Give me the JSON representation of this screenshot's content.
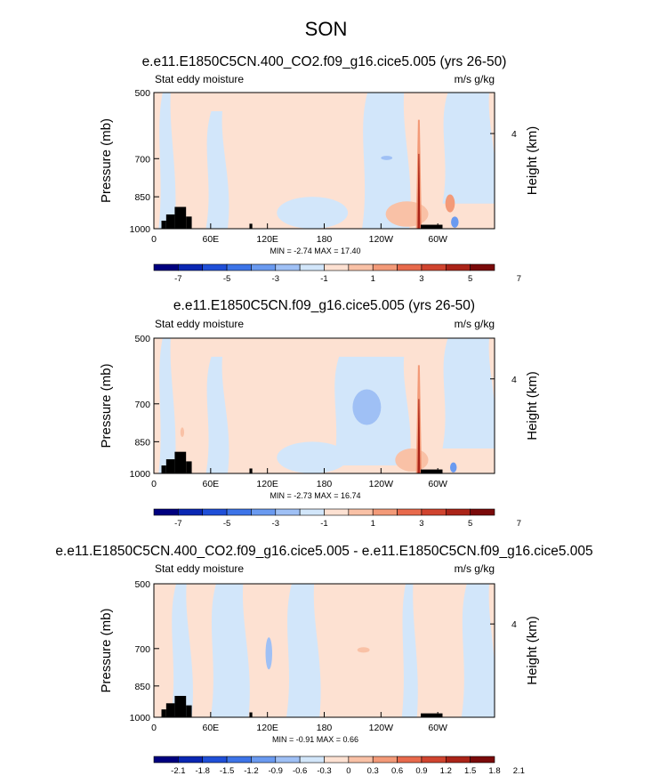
{
  "page_title": "SON",
  "colors": {
    "scale": [
      "#00007f",
      "#0a27b3",
      "#1f4fd8",
      "#3d74e8",
      "#6a9af0",
      "#9fc0f5",
      "#d2e6fa",
      "#fde1d2",
      "#f9c1a6",
      "#f39a78",
      "#e86a4c",
      "#d0442f",
      "#ab2418",
      "#7a0a0a"
    ],
    "land": "#000000",
    "axis": "#000000"
  },
  "chart_data": [
    {
      "type": "heatmap",
      "title": "e.e11.E1850C5CN.400_CO2.f09_g16.cice5.005 (yrs 26-50)",
      "left_label": "Stat eddy moisture",
      "right_label": "m/s g/kg",
      "ylabel": "Pressure (mb)",
      "ylabel_right": "Height (km)",
      "xticks": [
        "0",
        "60E",
        "120E",
        "180",
        "120W",
        "60W"
      ],
      "xtick_lon": [
        0,
        60,
        120,
        180,
        240,
        300
      ],
      "xlim": [
        0,
        360
      ],
      "yticks": [
        "500",
        "700",
        "850",
        "1000"
      ],
      "ytick_p": [
        500,
        700,
        850,
        1000
      ],
      "ylim": [
        500,
        1000
      ],
      "right_ticks": [
        "4"
      ],
      "right_tick_p": [
        616
      ],
      "stats": "MIN = -2.74  MAX = 17.40",
      "min": -2.74,
      "max": 17.4,
      "colorbar_labels": [
        "-7",
        "-5",
        "-3",
        "-1",
        "1",
        "3",
        "5",
        "7"
      ],
      "colorbar_levels": [
        -7,
        -6,
        -5,
        -4,
        -3,
        -2,
        -1,
        0,
        1,
        2,
        3,
        4,
        5,
        6,
        7
      ],
      "features": [
        {
          "kind": "band",
          "lon": [
            5,
            22
          ],
          "p": [
            500,
            1000
          ],
          "level": 6
        },
        {
          "kind": "band",
          "lon": [
            55,
            78
          ],
          "p": [
            550,
            1000
          ],
          "level": 6
        },
        {
          "kind": "blob",
          "lon": [
            130,
            205
          ],
          "p": [
            850,
            1000
          ],
          "level": 6
        },
        {
          "kind": "region",
          "lon": [
            220,
            270
          ],
          "p": [
            500,
            1000
          ],
          "level": 6
        },
        {
          "kind": "region",
          "lon": [
            305,
            360
          ],
          "p": [
            500,
            880
          ],
          "level": 6
        },
        {
          "kind": "blob",
          "lon": [
            240,
            252
          ],
          "p": [
            690,
            705
          ],
          "level": 5
        },
        {
          "kind": "blob",
          "lon": [
            245,
            290
          ],
          "p": [
            870,
            990
          ],
          "level": 8
        },
        {
          "kind": "spike",
          "lon": [
            277,
            283
          ],
          "p": [
            500,
            1000
          ],
          "level": 12
        },
        {
          "kind": "blob",
          "lon": [
            308,
            318
          ],
          "p": [
            840,
            920
          ],
          "level": 9
        },
        {
          "kind": "blob",
          "lon": [
            314,
            322
          ],
          "p": [
            940,
            995
          ],
          "level": 4
        }
      ],
      "land": [
        [
          8,
          13,
          960
        ],
        [
          13,
          22,
          930
        ],
        [
          22,
          34,
          895
        ],
        [
          34,
          40,
          940
        ],
        [
          101,
          104,
          975
        ],
        [
          282,
          305,
          980
        ]
      ]
    },
    {
      "type": "heatmap",
      "title": "e.e11.E1850C5CN.f09_g16.cice5.005 (yrs 26-50)",
      "left_label": "Stat eddy moisture",
      "right_label": "m/s g/kg",
      "ylabel": "Pressure (mb)",
      "ylabel_right": "Height (km)",
      "xticks": [
        "0",
        "60E",
        "120E",
        "180",
        "120W",
        "60W"
      ],
      "xtick_lon": [
        0,
        60,
        120,
        180,
        240,
        300
      ],
      "xlim": [
        0,
        360
      ],
      "yticks": [
        "500",
        "700",
        "850",
        "1000"
      ],
      "ytick_p": [
        500,
        700,
        850,
        1000
      ],
      "ylim": [
        500,
        1000
      ],
      "right_ticks": [
        "4"
      ],
      "right_tick_p": [
        616
      ],
      "stats": "MIN = -2.73  MAX = 16.74",
      "min": -2.73,
      "max": 16.74,
      "colorbar_labels": [
        "-7",
        "-5",
        "-3",
        "-1",
        "1",
        "3",
        "5",
        "7"
      ],
      "colorbar_levels": [
        -7,
        -6,
        -5,
        -4,
        -3,
        -2,
        -1,
        0,
        1,
        2,
        3,
        4,
        5,
        6,
        7
      ],
      "features": [
        {
          "kind": "band",
          "lon": [
            5,
            22
          ],
          "p": [
            500,
            1000
          ],
          "level": 6
        },
        {
          "kind": "band",
          "lon": [
            55,
            78
          ],
          "p": [
            550,
            1000
          ],
          "level": 6
        },
        {
          "kind": "blob",
          "lon": [
            130,
            205
          ],
          "p": [
            850,
            1000
          ],
          "level": 6
        },
        {
          "kind": "region",
          "lon": [
            190,
            270
          ],
          "p": [
            550,
            960
          ],
          "level": 6
        },
        {
          "kind": "blob",
          "lon": [
            210,
            240
          ],
          "p": [
            650,
            780
          ],
          "level": 5
        },
        {
          "kind": "region",
          "lon": [
            305,
            360
          ],
          "p": [
            500,
            880
          ],
          "level": 6
        },
        {
          "kind": "blob",
          "lon": [
            255,
            290
          ],
          "p": [
            880,
            990
          ],
          "level": 8
        },
        {
          "kind": "spike",
          "lon": [
            277,
            283
          ],
          "p": [
            500,
            1000
          ],
          "level": 12
        },
        {
          "kind": "blob",
          "lon": [
            313,
            320
          ],
          "p": [
            945,
            995
          ],
          "level": 4
        },
        {
          "kind": "blob",
          "lon": [
            28,
            32
          ],
          "p": [
            790,
            830
          ],
          "level": 8
        }
      ],
      "land": [
        [
          8,
          13,
          960
        ],
        [
          13,
          22,
          930
        ],
        [
          22,
          34,
          895
        ],
        [
          34,
          40,
          940
        ],
        [
          101,
          104,
          975
        ],
        [
          282,
          305,
          980
        ]
      ]
    },
    {
      "type": "heatmap",
      "title": "e.e11.E1850C5CN.400_CO2.f09_g16.cice5.005 - e.e11.E1850C5CN.f09_g16.cice5.005",
      "left_label": "Stat eddy moisture",
      "right_label": "m/s g/kg",
      "ylabel": "Pressure (mb)",
      "ylabel_right": "Height (km)",
      "xticks": [
        "0",
        "60E",
        "120E",
        "180",
        "120W",
        "60W"
      ],
      "xtick_lon": [
        0,
        60,
        120,
        180,
        240,
        300
      ],
      "xlim": [
        0,
        360
      ],
      "yticks": [
        "500",
        "700",
        "850",
        "1000"
      ],
      "ytick_p": [
        500,
        700,
        850,
        1000
      ],
      "ylim": [
        500,
        1000
      ],
      "right_ticks": [
        "4"
      ],
      "right_tick_p": [
        616
      ],
      "stats": "MIN = -0.91  MAX =  0.66",
      "min": -0.91,
      "max": 0.66,
      "colorbar_labels": [
        "-2.1",
        "-1.8",
        "-1.5",
        "-1.2",
        "-0.9",
        "-0.6",
        "-0.3",
        "0",
        "0.3",
        "0.6",
        "0.9",
        "1.2",
        "1.5",
        "1.8",
        "2.1"
      ],
      "colorbar_levels": [
        -2.1,
        -1.8,
        -1.5,
        -1.2,
        -0.9,
        -0.6,
        -0.3,
        0,
        0.3,
        0.6,
        0.9,
        1.2,
        1.5,
        1.8,
        2.1
      ],
      "features": [
        {
          "kind": "band",
          "lon": [
            18,
            40
          ],
          "p": [
            500,
            1000
          ],
          "level": 6
        },
        {
          "kind": "band",
          "lon": [
            60,
            100
          ],
          "p": [
            500,
            1000
          ],
          "level": 6
        },
        {
          "kind": "band",
          "lon": [
            140,
            175
          ],
          "p": [
            500,
            1000
          ],
          "level": 6
        },
        {
          "kind": "band",
          "lon": [
            262,
            278
          ],
          "p": [
            500,
            1000
          ],
          "level": 6
        },
        {
          "kind": "band",
          "lon": [
            325,
            360
          ],
          "p": [
            500,
            1000
          ],
          "level": 6
        },
        {
          "kind": "blob",
          "lon": [
            118,
            125
          ],
          "p": [
            660,
            780
          ],
          "level": 5
        },
        {
          "kind": "blob",
          "lon": [
            215,
            228
          ],
          "p": [
            695,
            715
          ],
          "level": 8
        }
      ],
      "land": [
        [
          8,
          13,
          960
        ],
        [
          13,
          22,
          930
        ],
        [
          22,
          34,
          895
        ],
        [
          34,
          40,
          940
        ],
        [
          101,
          104,
          975
        ],
        [
          282,
          305,
          980
        ]
      ]
    }
  ]
}
